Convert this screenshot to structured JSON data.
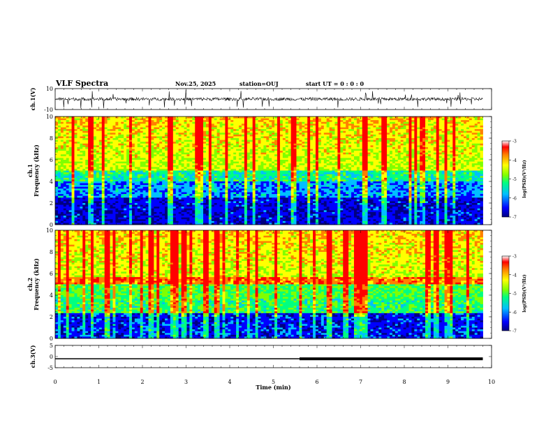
{
  "header": {
    "title": "VLF Spectra",
    "date": "Nov.25, 2025",
    "station": "station=OUJ",
    "start_ut": "start  UT  =   0 : 0  : 0"
  },
  "colors": {
    "spectrogram_scale": [
      "#000080",
      "#0000ff",
      "#00bfff",
      "#00ff80",
      "#80ff00",
      "#ffff00",
      "#ff8000",
      "#ff0000"
    ],
    "trace": "#000000",
    "background": "#ffffff"
  },
  "chart_data": [
    {
      "type": "line",
      "name": "waveform-ch1",
      "ylabel": "ch.1(V)",
      "ylim": [
        -10,
        10
      ],
      "yticks": [
        "10",
        "-10"
      ],
      "xlim": [
        0,
        10
      ],
      "description_values": {
        "baseline": 0,
        "typical_amplitude": 1.5,
        "spike_max": 9
      }
    },
    {
      "type": "heatmap",
      "name": "spectrogram-ch1",
      "ylabel": "ch.1\nFrequency (kHz)",
      "ylim": [
        0,
        10
      ],
      "yticks": [
        "0",
        "2",
        "4",
        "6",
        "8",
        "10"
      ],
      "xlim": [
        0,
        10
      ],
      "data_end_min": 9.8,
      "colorbar": {
        "label": "log(PSD)(V²/Hz)",
        "range": [
          -7,
          -3
        ],
        "ticks": [
          "-3",
          "-4",
          "-5",
          "-6",
          "-7"
        ]
      }
    },
    {
      "type": "heatmap",
      "name": "spectrogram-ch2",
      "ylabel": "ch.2\nFrequency (kHz)",
      "ylim": [
        0,
        10
      ],
      "yticks": [
        "0",
        "2",
        "4",
        "6",
        "8",
        "10"
      ],
      "xlim": [
        0,
        10
      ],
      "data_end_min": 9.8,
      "colorbar": {
        "label": "log(PSD)(V²/Hz)",
        "range": [
          -7,
          -3
        ],
        "ticks": [
          "-3",
          "-4",
          "-5",
          "-6",
          "-7"
        ]
      }
    },
    {
      "type": "line",
      "name": "waveform-ch3",
      "ylabel": "ch.3(V)",
      "ylim": [
        -5,
        5
      ],
      "yticks": [
        "5",
        "0",
        "-5"
      ],
      "xlim": [
        0,
        10
      ],
      "x": [
        0,
        5.6,
        5.6,
        9.8
      ],
      "y": [
        -1.0,
        -1.0,
        -1.0,
        -1.0
      ],
      "thick_from": 5.6
    }
  ],
  "xaxis": {
    "label": "Time  (min)",
    "ticks": [
      "0",
      "1",
      "2",
      "3",
      "4",
      "5",
      "6",
      "7",
      "8",
      "9",
      "10"
    ]
  }
}
